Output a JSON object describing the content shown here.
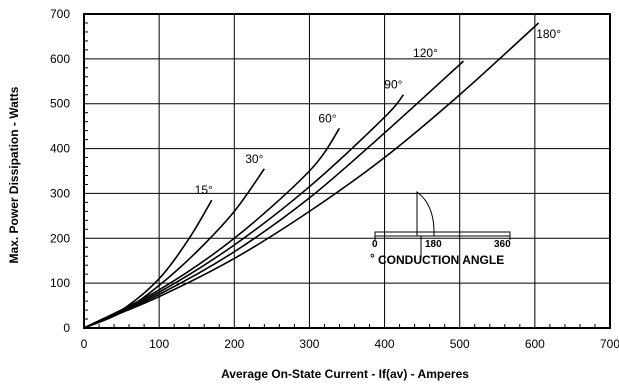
{
  "chart_data": {
    "type": "line",
    "title": "",
    "xlabel": "Average On-State Current - If(av) - Amperes",
    "ylabel": "Max. Power Dissipation - Watts",
    "xlim": [
      0,
      700
    ],
    "ylim": [
      0,
      700
    ],
    "x_ticks": [
      "0",
      "100",
      "200",
      "300",
      "400",
      "500",
      "600",
      "700"
    ],
    "y_ticks": [
      "0",
      "100",
      "200",
      "300",
      "400",
      "500",
      "600",
      "700"
    ],
    "grid": true,
    "legend": "none",
    "series": [
      {
        "name": "15°",
        "points": [
          [
            0,
            0
          ],
          [
            50,
            40
          ],
          [
            100,
            110
          ],
          [
            140,
            200
          ],
          [
            170,
            285
          ]
        ]
      },
      {
        "name": "30°",
        "points": [
          [
            0,
            0
          ],
          [
            50,
            35
          ],
          [
            100,
            95
          ],
          [
            150,
            170
          ],
          [
            200,
            260
          ],
          [
            240,
            355
          ]
        ]
      },
      {
        "name": "60°",
        "points": [
          [
            0,
            0
          ],
          [
            100,
            85
          ],
          [
            200,
            200
          ],
          [
            300,
            350
          ],
          [
            340,
            445
          ]
        ]
      },
      {
        "name": "90°",
        "points": [
          [
            0,
            0
          ],
          [
            100,
            80
          ],
          [
            200,
            185
          ],
          [
            300,
            315
          ],
          [
            400,
            470
          ],
          [
            425,
            520
          ]
        ]
      },
      {
        "name": "120°",
        "points": [
          [
            0,
            0
          ],
          [
            100,
            75
          ],
          [
            200,
            170
          ],
          [
            300,
            290
          ],
          [
            400,
            435
          ],
          [
            505,
            595
          ]
        ]
      },
      {
        "name": "180°",
        "points": [
          [
            0,
            0
          ],
          [
            100,
            70
          ],
          [
            200,
            155
          ],
          [
            300,
            260
          ],
          [
            400,
            380
          ],
          [
            500,
            520
          ],
          [
            605,
            680
          ]
        ]
      }
    ],
    "inset": {
      "scale_labels": [
        "0",
        "180",
        "360"
      ],
      "caption": "CONDUCTION ANGLE",
      "caption_symbol": "°"
    }
  }
}
